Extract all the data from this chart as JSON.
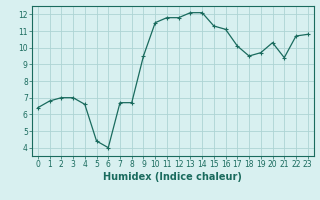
{
  "x": [
    0,
    1,
    2,
    3,
    4,
    5,
    6,
    7,
    8,
    9,
    10,
    11,
    12,
    13,
    14,
    15,
    16,
    17,
    18,
    19,
    20,
    21,
    22,
    23
  ],
  "y": [
    6.4,
    6.8,
    7.0,
    7.0,
    6.6,
    4.4,
    4.0,
    6.7,
    6.7,
    9.5,
    11.5,
    11.8,
    11.8,
    12.1,
    12.1,
    11.3,
    11.1,
    10.1,
    9.5,
    9.7,
    10.3,
    9.4,
    10.7,
    10.8
  ],
  "line_color": "#1a6b5e",
  "marker": "+",
  "marker_size": 3,
  "marker_lw": 0.8,
  "line_width": 0.9,
  "bg_color": "#d8f0f0",
  "grid_color": "#aed4d4",
  "xlabel": "Humidex (Indice chaleur)",
  "xlim": [
    -0.5,
    23.5
  ],
  "ylim": [
    3.5,
    12.5
  ],
  "xticks": [
    0,
    1,
    2,
    3,
    4,
    5,
    6,
    7,
    8,
    9,
    10,
    11,
    12,
    13,
    14,
    15,
    16,
    17,
    18,
    19,
    20,
    21,
    22,
    23
  ],
  "yticks": [
    4,
    5,
    6,
    7,
    8,
    9,
    10,
    11,
    12
  ],
  "tick_fontsize": 5.5,
  "label_fontsize": 7.0
}
